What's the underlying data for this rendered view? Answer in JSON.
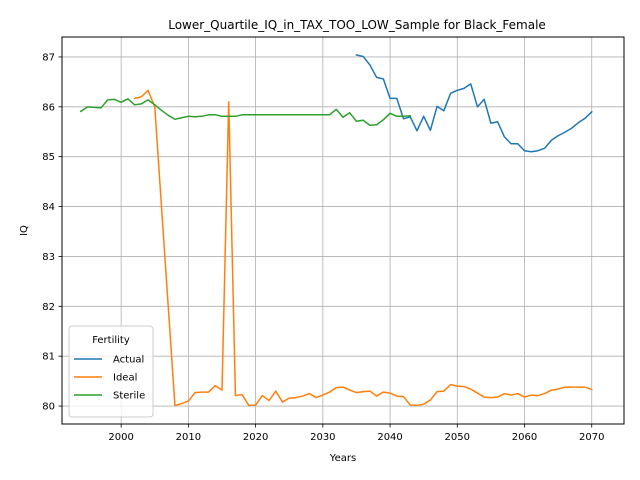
{
  "chart_data": {
    "type": "line",
    "title": "Lower_Quartile_IQ_in_TAX_TOO_LOW_Sample for Black_Female",
    "xlabel": "Years",
    "ylabel": "IQ",
    "xlim": [
      1991.2,
      2074.8
    ],
    "ylim": [
      79.64,
      87.4
    ],
    "xticks": [
      2000,
      2010,
      2020,
      2030,
      2040,
      2050,
      2060,
      2070
    ],
    "yticks": [
      80,
      81,
      82,
      83,
      84,
      85,
      86,
      87
    ],
    "grid": true,
    "legend": {
      "title": "Fertility",
      "position": "lower-left"
    },
    "series": [
      {
        "name": "Actual",
        "color": "#1f77b4",
        "x": [
          2035,
          2036,
          2037,
          2038,
          2039,
          2040,
          2041,
          2042,
          2043,
          2044,
          2045,
          2046,
          2047,
          2048,
          2049,
          2050,
          2051,
          2052,
          2053,
          2054,
          2055,
          2056,
          2057,
          2058,
          2059,
          2060,
          2061,
          2062,
          2063,
          2064,
          2065,
          2066,
          2067,
          2068,
          2069,
          2070
        ],
        "y": [
          87.04,
          87.01,
          86.84,
          86.59,
          86.56,
          86.17,
          86.17,
          85.76,
          85.8,
          85.52,
          85.81,
          85.53,
          86.01,
          85.92,
          86.27,
          86.33,
          86.37,
          86.46,
          86.0,
          86.15,
          85.67,
          85.7,
          85.4,
          85.26,
          85.26,
          85.12,
          85.1,
          85.12,
          85.17,
          85.33,
          85.42,
          85.49,
          85.57,
          85.68,
          85.77,
          85.9
        ]
      },
      {
        "name": "Ideal",
        "color": "#ff7f0e",
        "x": [
          2002,
          2003,
          2004,
          2005,
          2006,
          2007,
          2008,
          2009,
          2010,
          2011,
          2012,
          2013,
          2014,
          2015,
          2016,
          2017,
          2018,
          2019,
          2020,
          2021,
          2022,
          2023,
          2024,
          2025,
          2026,
          2027,
          2028,
          2029,
          2030,
          2031,
          2032,
          2033,
          2034,
          2035,
          2036,
          2037,
          2038,
          2039,
          2040,
          2041,
          2042,
          2043,
          2044,
          2045,
          2046,
          2047,
          2048,
          2049,
          2050,
          2051,
          2052,
          2053,
          2054,
          2055,
          2056,
          2057,
          2058,
          2059,
          2060,
          2061,
          2062,
          2063,
          2064,
          2065,
          2066,
          2067,
          2068,
          2069,
          2070
        ],
        "y": [
          86.17,
          86.2,
          86.33,
          86.0,
          84.0,
          82.0,
          80.01,
          80.05,
          80.1,
          80.27,
          80.28,
          80.28,
          80.41,
          80.32,
          86.1,
          80.21,
          80.23,
          80.01,
          80.02,
          80.21,
          80.11,
          80.3,
          80.08,
          80.16,
          80.17,
          80.2,
          80.25,
          80.17,
          80.22,
          80.28,
          80.37,
          80.38,
          80.32,
          80.27,
          80.29,
          80.3,
          80.2,
          80.28,
          80.26,
          80.2,
          80.19,
          80.02,
          80.01,
          80.04,
          80.12,
          80.29,
          80.3,
          80.43,
          80.4,
          80.39,
          80.34,
          80.26,
          80.18,
          80.17,
          80.18,
          80.25,
          80.22,
          80.25,
          80.18,
          80.22,
          80.21,
          80.25,
          80.32,
          80.34,
          80.38,
          80.38,
          80.38,
          80.38,
          80.33
        ]
      },
      {
        "name": "Sterile",
        "color": "#2ca02c",
        "x": [
          1994,
          1995,
          1996,
          1997,
          1998,
          1999,
          2000,
          2001,
          2002,
          2003,
          2004,
          2005,
          2006,
          2007,
          2008,
          2009,
          2010,
          2011,
          2012,
          2013,
          2014,
          2015,
          2016,
          2017,
          2018,
          2019,
          2020,
          2021,
          2022,
          2023,
          2024,
          2025,
          2026,
          2027,
          2028,
          2029,
          2030,
          2031,
          2032,
          2033,
          2034,
          2035,
          2036,
          2037,
          2038,
          2039,
          2040,
          2041,
          2042,
          2043
        ],
        "y": [
          85.91,
          86.0,
          85.99,
          85.98,
          86.14,
          86.15,
          86.09,
          86.16,
          86.04,
          86.06,
          86.14,
          86.04,
          85.93,
          85.83,
          85.75,
          85.78,
          85.81,
          85.8,
          85.81,
          85.84,
          85.84,
          85.81,
          85.81,
          85.81,
          85.84,
          85.84,
          85.84,
          85.84,
          85.84,
          85.84,
          85.84,
          85.84,
          85.84,
          85.84,
          85.84,
          85.84,
          85.84,
          85.84,
          85.95,
          85.79,
          85.88,
          85.71,
          85.73,
          85.63,
          85.64,
          85.74,
          85.87,
          85.81,
          85.81,
          85.82
        ]
      }
    ]
  }
}
